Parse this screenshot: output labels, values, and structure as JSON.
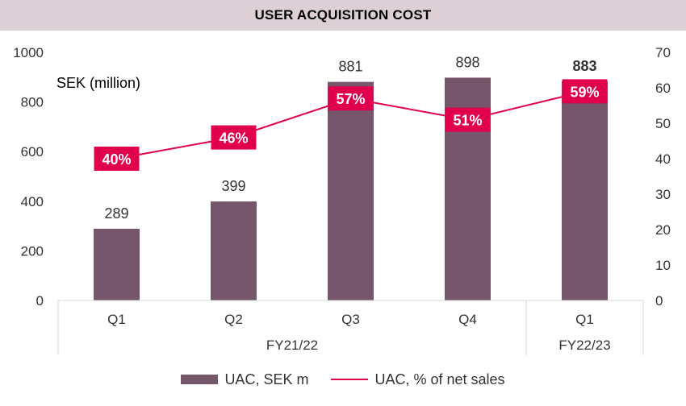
{
  "colors": {
    "title_bg": "#dcd0d6",
    "bar": "#76566b",
    "line": "#e0004d",
    "axis_text": "#333333",
    "grid": "#d9d9d9"
  },
  "chart_data": {
    "type": "bar",
    "title": "USER ACQUISITION COST",
    "ylabel": "SEK (million)",
    "categories": [
      "Q1",
      "Q2",
      "Q3",
      "Q4",
      "Q1"
    ],
    "groups": [
      {
        "label": "FY21/22",
        "count": 4
      },
      {
        "label": "FY22/23",
        "count": 1
      }
    ],
    "ylim": [
      0,
      1000
    ],
    "y_ticks": [
      0,
      200,
      400,
      600,
      800,
      1000
    ],
    "y2lim": [
      0,
      70
    ],
    "y2_ticks": [
      0,
      10,
      20,
      30,
      40,
      50,
      60,
      70
    ],
    "series": [
      {
        "name": "UAC, SEK m",
        "type": "bar",
        "axis": "left",
        "values": [
          289,
          399,
          881,
          898,
          883
        ],
        "labels": [
          "289",
          "399",
          "881",
          "898",
          "883"
        ],
        "bold_label_index": 4
      },
      {
        "name": "UAC, % of net sales",
        "type": "line",
        "axis": "right",
        "values": [
          40,
          46,
          57,
          51,
          59
        ],
        "labels": [
          "40%",
          "46%",
          "57%",
          "51%",
          "59%"
        ]
      }
    ],
    "legend_position": "bottom",
    "grid": false
  }
}
